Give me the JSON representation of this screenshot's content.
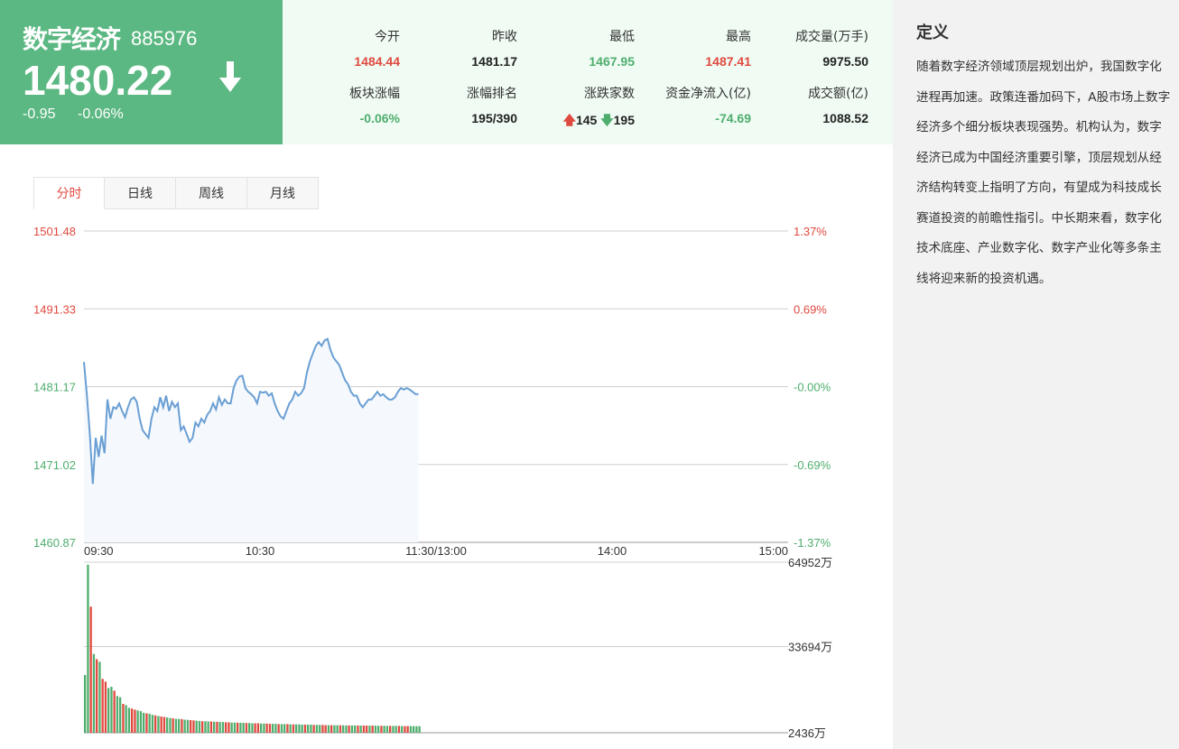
{
  "quote": {
    "name": "数字经济",
    "code": "885976",
    "price": "1480.22",
    "change": "-0.95",
    "change_pct": "-0.06%",
    "arrow_icon": "arrow-down-icon",
    "bg_color": "#5cb882"
  },
  "stats": {
    "row1": [
      {
        "label": "今开",
        "value": "1484.44",
        "color": "red"
      },
      {
        "label": "昨收",
        "value": "1481.17",
        "color": "dark"
      },
      {
        "label": "最低",
        "value": "1467.95",
        "color": "green"
      },
      {
        "label": "最高",
        "value": "1487.41",
        "color": "red"
      },
      {
        "label": "成交量(万手)",
        "value": "9975.50",
        "color": "dark"
      }
    ],
    "row2": [
      {
        "label": "板块涨幅",
        "value": "-0.06%",
        "color": "green"
      },
      {
        "label": "涨幅排名",
        "value": "195/390",
        "color": "dark"
      },
      {
        "label": "涨跌家数",
        "up": "145",
        "down": "195"
      },
      {
        "label": "资金净流入(亿)",
        "value": "-74.69",
        "color": "green"
      },
      {
        "label": "成交额(亿)",
        "value": "1088.52",
        "color": "dark"
      }
    ]
  },
  "tabs": [
    "分时",
    "日线",
    "周线",
    "月线"
  ],
  "active_tab": "分时",
  "definition": {
    "title": "定义",
    "text": "随着数字经济领域顶层规划出炉，我国数字化进程再加速。政策连番加码下，A股市场上数字经济多个细分板块表现强势。机构认为，数字经济已成为中国经济重要引擎，顶层规划从经济结构转变上指明了方向，有望成为科技成长赛道投资的前瞻性指引。中长期来看，数字化技术底座、产业数字化、数字产业化等多条主线将迎来新的投资机遇。"
  },
  "chart_data": [
    {
      "type": "line",
      "name": "intraday-price",
      "prev_close": 1481.17,
      "ylim": [
        1460.87,
        1501.48
      ],
      "y_ticks_left": [
        "1501.48",
        "1491.33",
        "1481.17",
        "1471.02",
        "1460.87"
      ],
      "y_ticks_right": [
        "1.37%",
        "0.69%",
        "-0.00%",
        "-0.69%",
        "-1.37%"
      ],
      "x_ticks": [
        "09:30",
        "10:30",
        "11:30/13:00",
        "14:00",
        "15:00"
      ],
      "x_total_minutes": 240,
      "line_color": "#6a9fd4",
      "values": [
        1484.4,
        1480.0,
        1475.0,
        1468.5,
        1474.5,
        1472.0,
        1474.8,
        1472.5,
        1479.5,
        1477.0,
        1478.5,
        1478.3,
        1479.0,
        1478.0,
        1477.2,
        1478.5,
        1479.5,
        1479.8,
        1479.2,
        1477.0,
        1475.5,
        1475.0,
        1474.5,
        1477.0,
        1478.5,
        1478.0,
        1479.8,
        1478.5,
        1480.0,
        1478.0,
        1479.2,
        1478.5,
        1479.0,
        1475.5,
        1476.0,
        1475.0,
        1474.0,
        1474.5,
        1476.5,
        1476.0,
        1477.0,
        1476.5,
        1477.5,
        1478.0,
        1479.0,
        1478.2,
        1479.8,
        1478.8,
        1479.5,
        1479.0,
        1479.0,
        1481.0,
        1482.0,
        1482.5,
        1482.6,
        1481.0,
        1480.5,
        1480.2,
        1479.8,
        1479.0,
        1480.5,
        1480.4,
        1480.5,
        1480.0,
        1480.3,
        1479.0,
        1478.0,
        1477.3,
        1477.0,
        1478.0,
        1479.0,
        1479.5,
        1480.5,
        1480.0,
        1480.3,
        1481.0,
        1483.0,
        1484.5,
        1485.5,
        1486.5,
        1487.0,
        1486.5,
        1487.2,
        1487.4,
        1486.0,
        1485.0,
        1484.5,
        1484.0,
        1483.0,
        1482.0,
        1481.5,
        1480.5,
        1480.0,
        1480.0,
        1479.0,
        1478.5,
        1479.0,
        1479.5,
        1479.5,
        1480.0,
        1480.5,
        1480.0,
        1480.2,
        1479.8,
        1479.5,
        1479.5,
        1479.8,
        1480.5,
        1481.0,
        1480.8,
        1481.0,
        1480.8,
        1480.5,
        1480.2,
        1480.2
      ]
    },
    {
      "type": "bar",
      "name": "intraday-volume",
      "unit": "万",
      "ylim": [
        2436,
        64952
      ],
      "y_ticks": [
        "64952万",
        "33694万",
        "2436万"
      ],
      "colors": {
        "up": "#e0493f",
        "down": "#4fae6e"
      },
      "values": [
        22000,
        64000,
        48000,
        30000,
        28000,
        27000,
        20500,
        19500,
        17000,
        17500,
        16000,
        14000,
        13500,
        11000,
        10500,
        9500,
        9200,
        8800,
        8500,
        8200,
        7600,
        7400,
        7200,
        6800,
        6600,
        6400,
        6200,
        6000,
        5800,
        5600,
        5500,
        5300,
        5300,
        5200,
        5000,
        4900,
        4800,
        4700,
        4600,
        4500,
        4400,
        4400,
        4300,
        4300,
        4200,
        4200,
        4100,
        4100,
        4000,
        4000,
        3900,
        3900,
        3800,
        3800,
        3800,
        3700,
        3700,
        3600,
        3600,
        3600,
        3500,
        3500,
        3500,
        3400,
        3400,
        3400,
        3300,
        3300,
        3300,
        3300,
        3200,
        3200,
        3200,
        3200,
        3100,
        3100,
        3100,
        3100,
        3000,
        3000,
        3000,
        3000,
        2900,
        2900,
        2900,
        2900,
        2850,
        2850,
        2850,
        2800,
        2800,
        2800,
        2800,
        2750,
        2750,
        2750,
        2700,
        2700,
        2700,
        2700,
        2650,
        2650,
        2650,
        2650,
        2600,
        2600,
        2600,
        2600,
        2550,
        2550,
        2550,
        2550,
        2500,
        2500,
        2500
      ],
      "directions": "ddududuudduddudduudddudduduudduddudduudduddududduudduddudduudduudduddududdduddudduududduddudduduududduddudduduudd"
    }
  ]
}
